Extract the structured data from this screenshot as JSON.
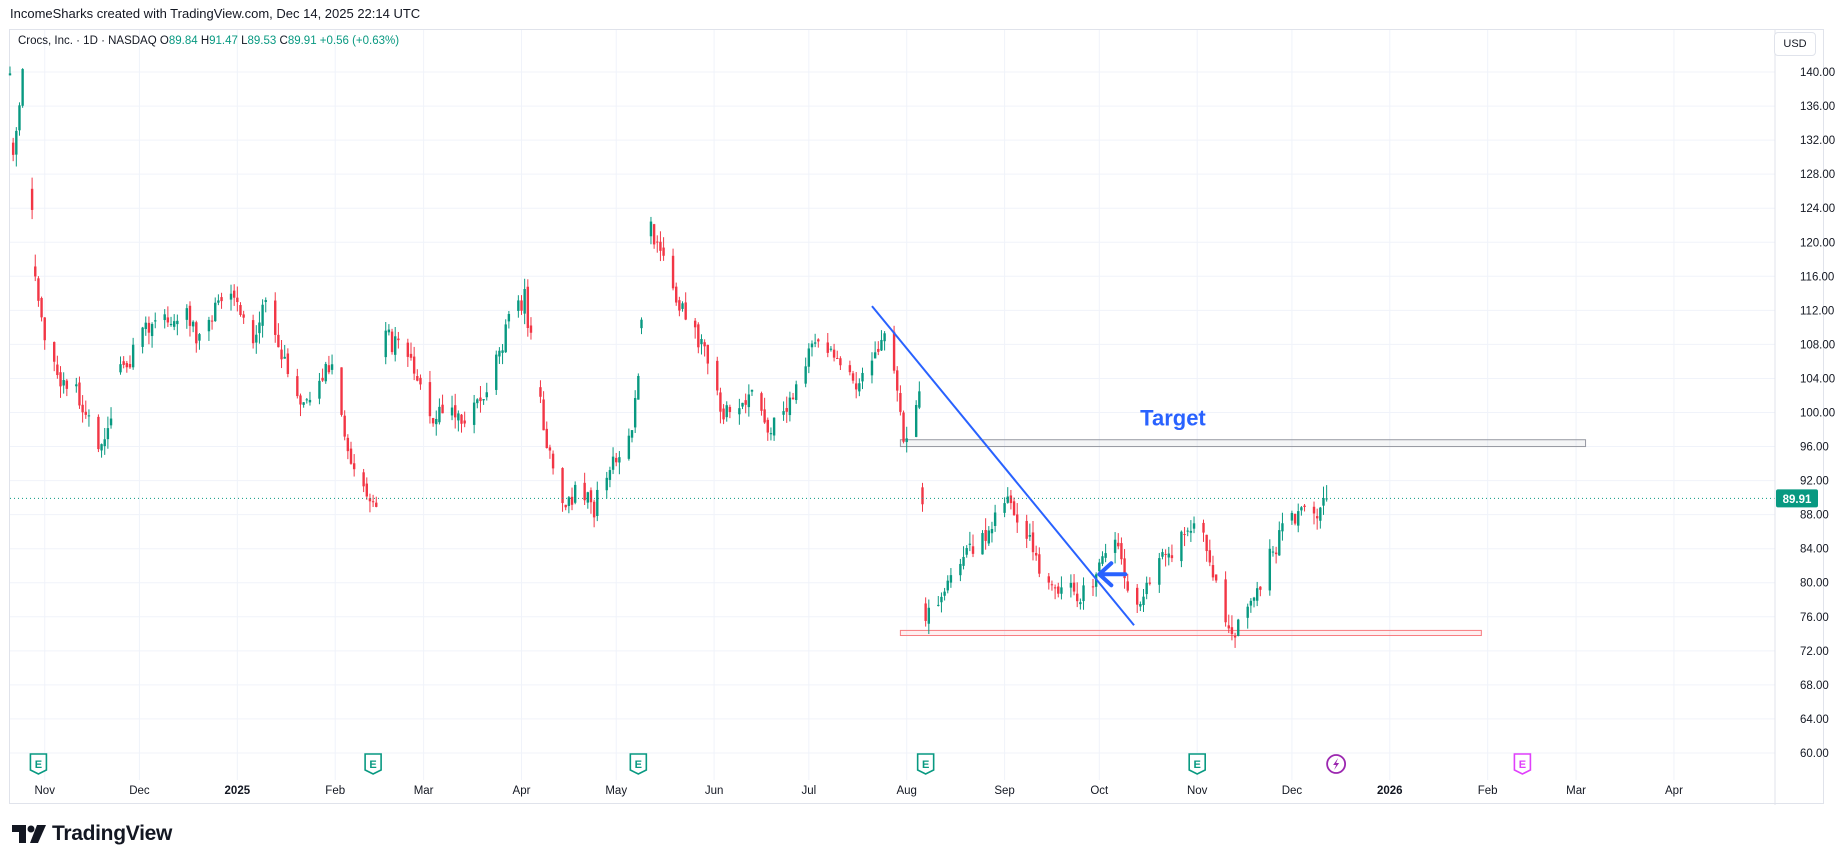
{
  "header": {
    "credit": "IncomeSharks created with TradingView.com, Dec 14, 2025 22:14 UTC"
  },
  "legend": {
    "symbol": "Crocs, Inc. · 1D · NASDAQ",
    "open_label": "O",
    "open": "89.84",
    "high_label": "H",
    "high": "91.47",
    "low_label": "L",
    "low": "89.53",
    "close_label": "C",
    "close": "89.91",
    "change": "+0.56 (+0.63%)"
  },
  "currency": "USD",
  "footer": {
    "brand": "TradingView"
  },
  "colors": {
    "up": "#089981",
    "down": "#f23645",
    "trendline": "#2962ff",
    "target_text": "#2962ff",
    "last_price_badge": "#089981",
    "earnings_icon": "#089981",
    "dividend_icon": "#9c27b0",
    "future_earnings_icon": "#e040fb"
  },
  "chart_data": {
    "type": "candlestick",
    "symbol": "Crocs, Inc.",
    "interval": "1D",
    "exchange": "NASDAQ",
    "y_axis": {
      "ticks": [
        "140.00",
        "136.00",
        "132.00",
        "128.00",
        "124.00",
        "120.00",
        "116.00",
        "112.00",
        "108.00",
        "104.00",
        "100.00",
        "96.00",
        "92.00",
        "88.00",
        "84.00",
        "80.00",
        "76.00",
        "72.00",
        "68.00",
        "64.00",
        "60.00"
      ],
      "ylim": [
        58,
        142
      ]
    },
    "x_axis": {
      "ticks": [
        {
          "label": "Nov",
          "date": "2024-11-01",
          "bold": false
        },
        {
          "label": "Dec",
          "date": "2024-12-01",
          "bold": false
        },
        {
          "label": "2025",
          "date": "2025-01-01",
          "bold": true
        },
        {
          "label": "Feb",
          "date": "2025-02-01",
          "bold": false
        },
        {
          "label": "Mar",
          "date": "2025-03-01",
          "bold": false
        },
        {
          "label": "Apr",
          "date": "2025-04-01",
          "bold": false
        },
        {
          "label": "May",
          "date": "2025-05-01",
          "bold": false
        },
        {
          "label": "Jun",
          "date": "2025-06-01",
          "bold": false
        },
        {
          "label": "Jul",
          "date": "2025-07-01",
          "bold": false
        },
        {
          "label": "Aug",
          "date": "2025-08-01",
          "bold": false
        },
        {
          "label": "Sep",
          "date": "2025-09-01",
          "bold": false
        },
        {
          "label": "Oct",
          "date": "2025-10-01",
          "bold": false
        },
        {
          "label": "Nov",
          "date": "2025-11-01",
          "bold": false
        },
        {
          "label": "Dec",
          "date": "2025-12-01",
          "bold": false
        },
        {
          "label": "2026",
          "date": "2026-01-01",
          "bold": true
        },
        {
          "label": "Feb",
          "date": "2026-02-01",
          "bold": false
        },
        {
          "label": "Mar",
          "date": "2026-03-01",
          "bold": false
        },
        {
          "label": "Apr",
          "date": "2026-04-01",
          "bold": false
        }
      ],
      "xlim": [
        "2024-10-21",
        "2026-05-03"
      ]
    },
    "grid": true,
    "last_price": 89.91,
    "path": [
      [
        "2024-10-21",
        139.5
      ],
      [
        "2024-10-22",
        131.0
      ],
      [
        "2024-10-24",
        136.0
      ],
      [
        "2024-10-25",
        140.0
      ],
      [
        "2024-10-29",
        117.0
      ],
      [
        "2024-11-01",
        108.0
      ],
      [
        "2024-11-06",
        104.0
      ],
      [
        "2024-11-12",
        102.0
      ],
      [
        "2024-11-15",
        98.5
      ],
      [
        "2024-11-19",
        95.5
      ],
      [
        "2024-11-21",
        99.0
      ],
      [
        "2024-11-25",
        104.5
      ],
      [
        "2024-11-29",
        107.0
      ],
      [
        "2024-12-04",
        110.0
      ],
      [
        "2024-12-07",
        113.0
      ],
      [
        "2024-12-11",
        110.0
      ],
      [
        "2024-12-15",
        113.0
      ],
      [
        "2024-12-19",
        108.5
      ],
      [
        "2024-12-23",
        111.0
      ],
      [
        "2024-12-28",
        113.5
      ],
      [
        "2025-01-02",
        112.0
      ],
      [
        "2025-01-06",
        109.0
      ],
      [
        "2025-01-10",
        112.5
      ],
      [
        "2025-01-15",
        107.0
      ],
      [
        "2025-01-19",
        102.5
      ],
      [
        "2025-01-24",
        100.5
      ],
      [
        "2025-01-28",
        104.5
      ],
      [
        "2025-01-31",
        106.0
      ],
      [
        "2025-02-04",
        96.5
      ],
      [
        "2025-02-08",
        92.5
      ],
      [
        "2025-02-12",
        89.5
      ],
      [
        "2025-02-14",
        89.0
      ],
      [
        "2025-02-15",
        110.5
      ],
      [
        "2025-02-19",
        108.0
      ],
      [
        "2025-02-23",
        109.0
      ],
      [
        "2025-02-28",
        102.5
      ],
      [
        "2025-03-04",
        99.0
      ],
      [
        "2025-03-09",
        101.5
      ],
      [
        "2025-03-13",
        98.0
      ],
      [
        "2025-03-18",
        100.5
      ],
      [
        "2025-03-24",
        106.0
      ],
      [
        "2025-03-29",
        112.0
      ],
      [
        "2025-04-02",
        113.5
      ],
      [
        "2025-04-06",
        103.0
      ],
      [
        "2025-04-10",
        95.0
      ],
      [
        "2025-04-14",
        89.0
      ],
      [
        "2025-04-20",
        91.0
      ],
      [
        "2025-04-24",
        88.5
      ],
      [
        "2025-04-27",
        93.0
      ],
      [
        "2025-05-01",
        95.0
      ],
      [
        "2025-05-06",
        98.5
      ],
      [
        "2025-05-08",
        104.0
      ],
      [
        "2025-05-10",
        116.5
      ],
      [
        "2025-05-12",
        121.5
      ],
      [
        "2025-05-16",
        118.5
      ],
      [
        "2025-05-21",
        113.0
      ],
      [
        "2025-05-26",
        109.5
      ],
      [
        "2025-05-31",
        105.5
      ],
      [
        "2025-06-04",
        99.5
      ],
      [
        "2025-06-09",
        100.5
      ],
      [
        "2025-06-13",
        102.0
      ],
      [
        "2025-06-18",
        97.5
      ],
      [
        "2025-06-24",
        100.5
      ],
      [
        "2025-06-29",
        105.0
      ],
      [
        "2025-07-03",
        108.0
      ],
      [
        "2025-07-08",
        106.5
      ],
      [
        "2025-07-13",
        103.5
      ],
      [
        "2025-07-19",
        104.0
      ],
      [
        "2025-07-25",
        108.5
      ],
      [
        "2025-07-29",
        102.5
      ],
      [
        "2025-07-31",
        96.5
      ],
      [
        "2025-08-03",
        99.0
      ],
      [
        "2025-08-05",
        103.5
      ],
      [
        "2025-08-07",
        75.5
      ],
      [
        "2025-08-09",
        76.5
      ],
      [
        "2025-08-13",
        80.0
      ],
      [
        "2025-08-19",
        83.0
      ],
      [
        "2025-08-25",
        85.5
      ],
      [
        "2025-08-30",
        88.0
      ],
      [
        "2025-09-03",
        89.5
      ],
      [
        "2025-09-08",
        86.0
      ],
      [
        "2025-09-12",
        81.0
      ],
      [
        "2025-09-17",
        78.5
      ],
      [
        "2025-09-21",
        80.0
      ],
      [
        "2025-09-25",
        78.0
      ],
      [
        "2025-09-29",
        80.5
      ],
      [
        "2025-10-03",
        84.5
      ],
      [
        "2025-10-06",
        86.0
      ],
      [
        "2025-10-09",
        80.0
      ],
      [
        "2025-10-14",
        77.5
      ],
      [
        "2025-10-19",
        82.0
      ],
      [
        "2025-10-24",
        83.5
      ],
      [
        "2025-10-29",
        86.5
      ],
      [
        "2025-11-01",
        88.5
      ],
      [
        "2025-11-04",
        83.0
      ],
      [
        "2025-11-07",
        80.0
      ],
      [
        "2025-11-10",
        76.5
      ],
      [
        "2025-11-13",
        74.0
      ],
      [
        "2025-11-16",
        75.5
      ],
      [
        "2025-11-20",
        79.0
      ],
      [
        "2025-11-24",
        83.0
      ],
      [
        "2025-11-28",
        86.0
      ],
      [
        "2025-12-03",
        88.0
      ],
      [
        "2025-12-07",
        89.5
      ],
      [
        "2025-12-09",
        86.5
      ],
      [
        "2025-12-11",
        89.0
      ],
      [
        "2025-12-12",
        89.91
      ]
    ],
    "annotations": {
      "trendline": {
        "start": [
          "2025-07-21",
          112.5
        ],
        "end": [
          "2025-10-12",
          75.0
        ]
      },
      "arrow": {
        "point": [
          "2025-10-01",
          81.0
        ]
      },
      "target_zone": {
        "label": "Target",
        "from": "2025-07-30",
        "to": "2026-03-04",
        "low": 96.0,
        "high": 96.8
      },
      "support_zone": {
        "from": "2025-07-30",
        "to": "2026-01-30",
        "low": 73.8,
        "high": 74.4
      }
    },
    "events": [
      {
        "date": "2024-10-30",
        "type": "earnings"
      },
      {
        "date": "2025-02-13",
        "type": "earnings"
      },
      {
        "date": "2025-05-08",
        "type": "earnings"
      },
      {
        "date": "2025-08-07",
        "type": "earnings"
      },
      {
        "date": "2025-11-01",
        "type": "earnings"
      },
      {
        "date": "2025-12-15",
        "type": "dividend"
      },
      {
        "date": "2026-02-12",
        "type": "earnings-upcoming"
      }
    ]
  }
}
